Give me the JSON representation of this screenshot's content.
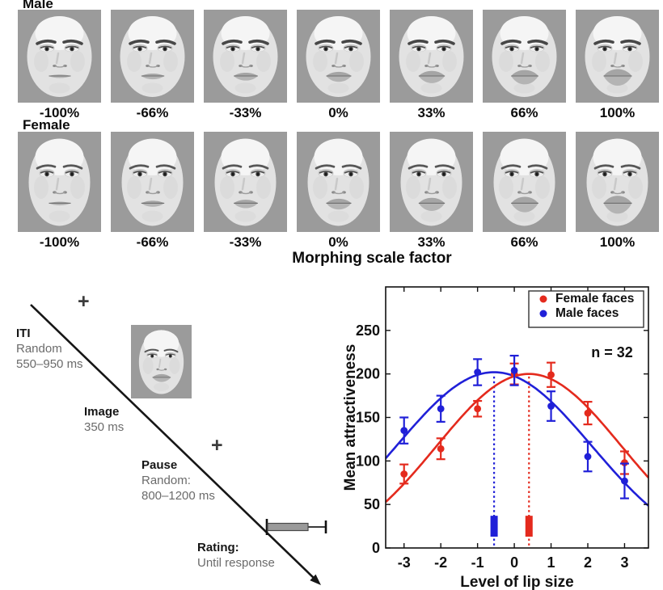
{
  "stimuli": {
    "male_label": "Male",
    "female_label": "Female",
    "morph_labels": [
      "-100%",
      "-66%",
      "-33%",
      "0%",
      "33%",
      "66%",
      "100%"
    ],
    "axis_title": "Morphing scale factor"
  },
  "trial": {
    "fixation_symbol": "+",
    "iti_title": "ITI",
    "iti_line1": "Random",
    "iti_line2": "550–950 ms",
    "image_title": "Image",
    "image_line1": "350 ms",
    "pause_title": "Pause",
    "pause_line1": "Random:",
    "pause_line2": "800–1200 ms",
    "rating_title": "Rating:",
    "rating_line1": "Until response"
  },
  "chart_data": {
    "type": "scatter",
    "title": "",
    "xlabel": "Level of lip size",
    "ylabel": "Mean attractiveness",
    "annotation": "n = 32",
    "xlim": [
      -3.5,
      3.65
    ],
    "ylim": [
      0,
      300
    ],
    "xticks": [
      -3,
      -2,
      -1,
      0,
      1,
      2,
      3
    ],
    "yticks": [
      0,
      50,
      100,
      150,
      200,
      250
    ],
    "grid": false,
    "legend_position": "top-right",
    "x": [
      -3,
      -2,
      -1,
      0,
      1,
      2,
      3
    ],
    "series": [
      {
        "name": "Female faces",
        "color": "#e42a1d",
        "y": [
          85,
          114,
          160,
          200,
          199,
          155,
          98
        ],
        "yerr": [
          11,
          12,
          9,
          12,
          14,
          13,
          13
        ],
        "fit_curve": {
          "shape": "gaussian",
          "amp": 210,
          "center": 0.4,
          "two_sigma_sq": 12.6,
          "offset": -10
        },
        "optimum_x": 0.4
      },
      {
        "name": "Male faces",
        "color": "#2020d8",
        "y": [
          135,
          160,
          202,
          204,
          163,
          105,
          77
        ],
        "yerr": [
          15,
          15,
          15,
          17,
          17,
          17,
          20
        ],
        "fit_curve": {
          "shape": "gaussian",
          "amp": 215,
          "center": -0.55,
          "two_sigma_sq": 14.1,
          "offset": -13
        },
        "optimum_x": -0.55
      }
    ],
    "optimum_marker": {
      "bar_y_bottom": 13,
      "bar_y_top": 37,
      "dash_line_top": 197
    }
  }
}
